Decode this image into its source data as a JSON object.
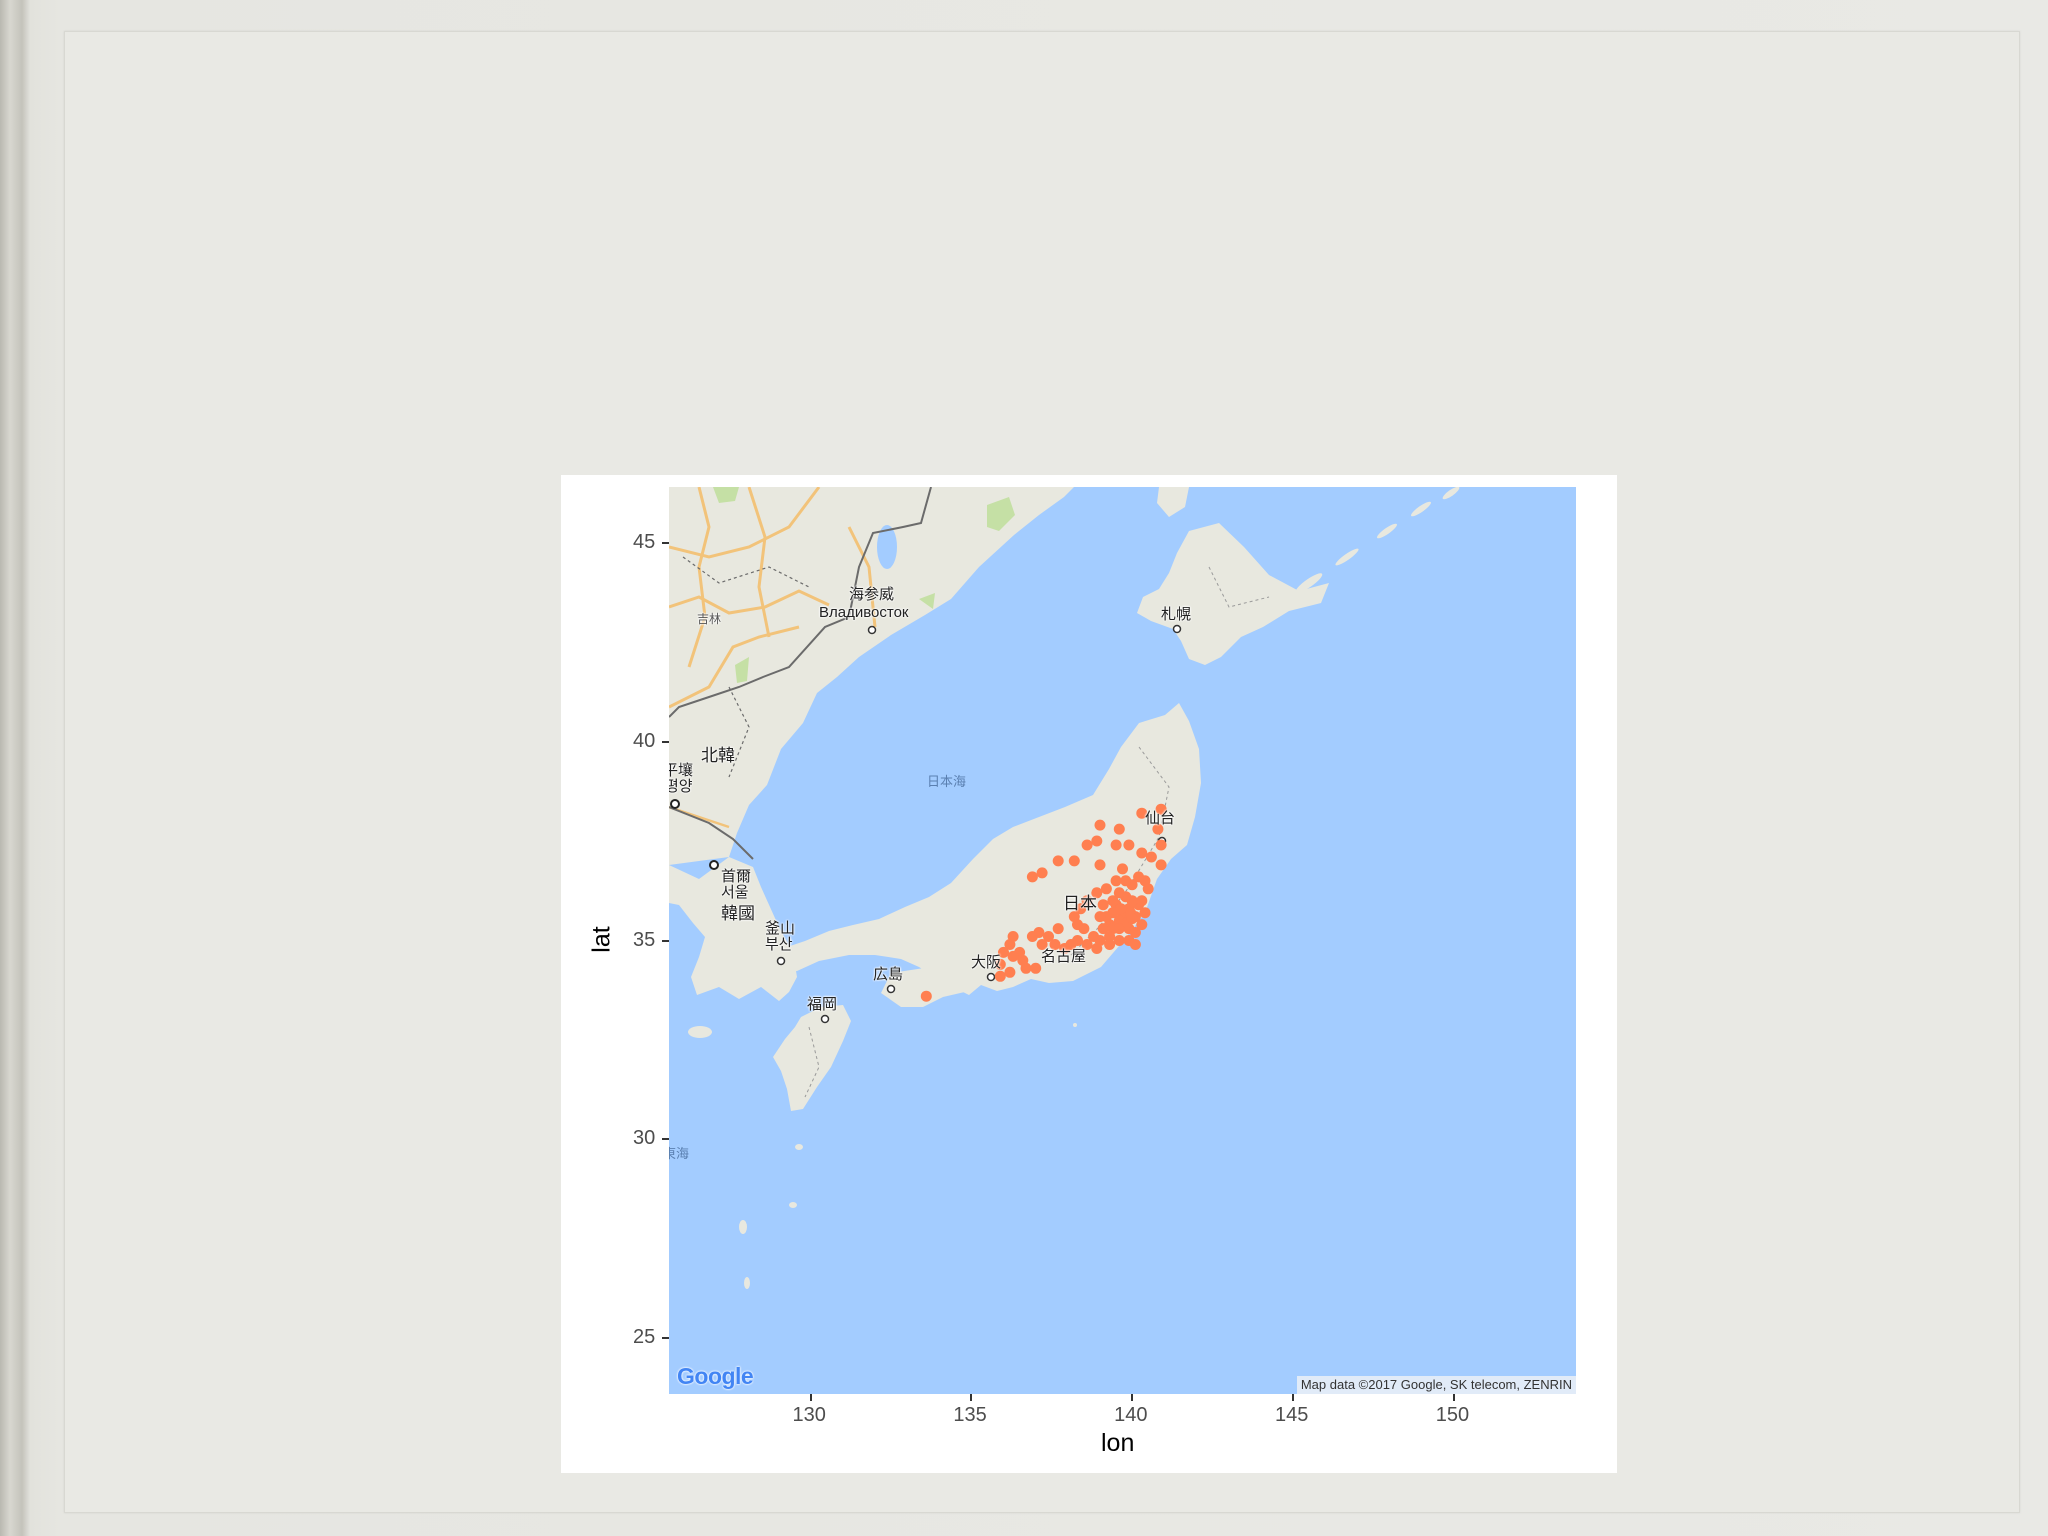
{
  "chart_data": {
    "type": "scatter",
    "title": "",
    "xlabel": "lon",
    "ylabel": "lat",
    "xlim": [
      125.6,
      153.8
    ],
    "ylim": [
      23.6,
      46.4
    ],
    "x_ticks": [
      "130",
      "135",
      "140",
      "145",
      "150"
    ],
    "y_ticks": [
      "25",
      "30",
      "35",
      "40",
      "45"
    ],
    "point_color": "#ff7f50",
    "series": [
      {
        "points": [
          [
            139.7,
            35.7
          ],
          [
            139.8,
            35.6
          ],
          [
            139.6,
            35.5
          ],
          [
            139.9,
            35.8
          ],
          [
            140.1,
            35.6
          ],
          [
            139.5,
            35.9
          ],
          [
            139.4,
            35.7
          ],
          [
            139.3,
            35.4
          ],
          [
            139.2,
            35.6
          ],
          [
            140.2,
            35.9
          ],
          [
            140.0,
            36.0
          ],
          [
            139.8,
            36.1
          ],
          [
            139.6,
            36.2
          ],
          [
            139.4,
            36.0
          ],
          [
            139.1,
            35.9
          ],
          [
            139.0,
            35.6
          ],
          [
            139.1,
            35.3
          ],
          [
            139.4,
            35.3
          ],
          [
            139.6,
            35.3
          ],
          [
            139.9,
            35.3
          ],
          [
            140.1,
            35.2
          ],
          [
            140.3,
            35.4
          ],
          [
            140.4,
            35.7
          ],
          [
            140.3,
            36.0
          ],
          [
            140.5,
            36.3
          ],
          [
            140.4,
            36.5
          ],
          [
            140.2,
            36.6
          ],
          [
            140.0,
            36.4
          ],
          [
            139.8,
            36.5
          ],
          [
            139.5,
            36.5
          ],
          [
            139.2,
            36.3
          ],
          [
            138.9,
            36.2
          ],
          [
            138.6,
            36.0
          ],
          [
            138.4,
            35.8
          ],
          [
            138.2,
            35.6
          ],
          [
            138.5,
            35.3
          ],
          [
            138.8,
            35.1
          ],
          [
            139.0,
            35.0
          ],
          [
            139.3,
            35.1
          ],
          [
            139.6,
            35.0
          ],
          [
            139.9,
            35.0
          ],
          [
            140.1,
            34.9
          ],
          [
            139.3,
            34.9
          ],
          [
            138.9,
            34.8
          ],
          [
            138.6,
            34.9
          ],
          [
            138.3,
            35.0
          ],
          [
            138.1,
            34.9
          ],
          [
            137.9,
            34.8
          ],
          [
            137.6,
            34.9
          ],
          [
            137.4,
            35.1
          ],
          [
            137.1,
            35.2
          ],
          [
            136.9,
            35.1
          ],
          [
            137.2,
            34.9
          ],
          [
            136.9,
            36.6
          ],
          [
            137.2,
            36.7
          ],
          [
            137.7,
            37.0
          ],
          [
            138.2,
            37.0
          ],
          [
            138.6,
            37.4
          ],
          [
            139.0,
            37.9
          ],
          [
            139.5,
            37.4
          ],
          [
            139.9,
            37.4
          ],
          [
            140.3,
            37.2
          ],
          [
            140.6,
            37.1
          ],
          [
            140.9,
            37.4
          ],
          [
            140.8,
            37.8
          ],
          [
            140.9,
            38.3
          ],
          [
            140.3,
            38.2
          ],
          [
            139.6,
            37.8
          ],
          [
            138.9,
            37.5
          ],
          [
            140.9,
            36.9
          ],
          [
            139.7,
            36.8
          ],
          [
            139.0,
            36.9
          ],
          [
            136.3,
            35.1
          ],
          [
            136.2,
            34.9
          ],
          [
            136.0,
            34.7
          ],
          [
            135.9,
            34.4
          ],
          [
            135.9,
            34.1
          ],
          [
            136.2,
            34.2
          ],
          [
            136.7,
            34.3
          ],
          [
            137.0,
            34.3
          ],
          [
            136.6,
            34.5
          ],
          [
            136.5,
            34.7
          ],
          [
            136.3,
            34.6
          ],
          [
            133.6,
            33.6
          ],
          [
            137.7,
            35.3
          ],
          [
            138.3,
            35.4
          ],
          [
            139.95,
            35.7
          ],
          [
            139.65,
            35.8
          ],
          [
            139.85,
            35.45
          ],
          [
            140.0,
            35.55
          ]
        ]
      }
    ]
  },
  "map_labels": {
    "vladivostok_cn": "海参威",
    "vladivostok_ru": "Владивосток",
    "jilin": "吉林",
    "sapporo": "札幌",
    "north_korea": "北韓",
    "pyongyang": "平壤",
    "pyongyang_ko": "평양",
    "seoul_cn": "首爾",
    "seoul_ko": "서울",
    "korea": "韓國",
    "busan_cn": "釜山",
    "busan_ko": "부산",
    "sea_of_japan": "日本海",
    "sendai": "仙台",
    "japan": "日本",
    "osaka": "大阪",
    "nagoya": "名古屋",
    "hiroshima": "広島",
    "fukuoka": "福岡",
    "east_china_sea": "東海"
  },
  "map_footer": {
    "logo": "Google",
    "attribution": "Map data ©2017 Google, SK telecom, ZENRIN"
  },
  "colors": {
    "water": "#a3ccff",
    "land": "#e8e8df",
    "park": "#c5e0a5",
    "point": "#ff7f50",
    "border": "#6b6b6b",
    "road": "#f2c37a"
  }
}
